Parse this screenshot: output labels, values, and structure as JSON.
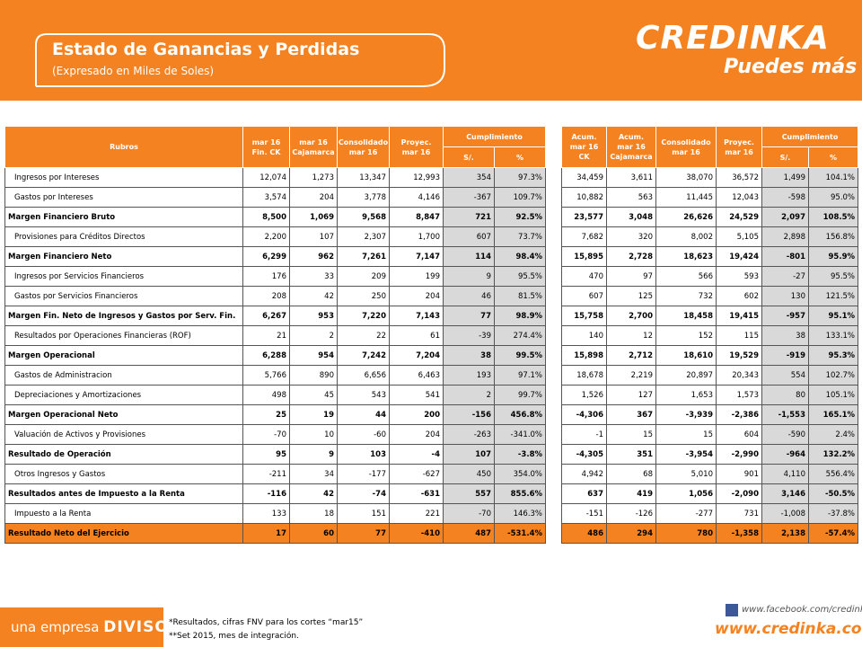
{
  "header": {
    "title": "Estado de Ganancias y Perdidas",
    "subtitle": "(Expresado en Miles de Soles)"
  },
  "logo": {
    "brand": "CREDINKA",
    "tagline": "Puedes más"
  },
  "table": {
    "left_headers": [
      "Rubros",
      "mar 16\nFin. CK",
      "mar 16\nCajamarca",
      "Consolidado\nmar 16",
      "Proyec.\nmar 16",
      "Cumplimiento",
      "S/.",
      "%"
    ],
    "right_headers": [
      "Acum.\nmar 16\nCK",
      "Acum.\nmar 16\nCajamarca",
      "Consolidado\nmar 16",
      "Proyec.\nmar 16",
      "Cumplimiento",
      "S/.",
      "%"
    ],
    "rows": [
      {
        "label": "Ingresos por Intereses",
        "bold": false,
        "values": [
          "12,074",
          "1,273",
          "13,347",
          "12,993",
          "354",
          "97.3%",
          "34,459",
          "3,611",
          "38,070",
          "36,572",
          "1,499",
          "104.1%"
        ]
      },
      {
        "label": "Gastos por Intereses",
        "bold": false,
        "values": [
          "3,574",
          "204",
          "3,778",
          "4,146",
          "-367",
          "109.7%",
          "10,882",
          "563",
          "11,445",
          "12,043",
          "-598",
          "95.0%"
        ]
      },
      {
        "label": "Margen Financiero Bruto",
        "bold": true,
        "values": [
          "8,500",
          "1,069",
          "9,568",
          "8,847",
          "721",
          "92.5%",
          "23,577",
          "3,048",
          "26,626",
          "24,529",
          "2,097",
          "108.5%"
        ]
      },
      {
        "label": "Provisiones para Créditos Directos",
        "bold": false,
        "values": [
          "2,200",
          "107",
          "2,307",
          "1,700",
          "607",
          "73.7%",
          "7,682",
          "320",
          "8,002",
          "5,105",
          "2,898",
          "156.8%"
        ]
      },
      {
        "label": "Margen Financiero Neto",
        "bold": true,
        "values": [
          "6,299",
          "962",
          "7,261",
          "7,147",
          "114",
          "98.4%",
          "15,895",
          "2,728",
          "18,623",
          "19,424",
          "-801",
          "95.9%"
        ]
      },
      {
        "label": "Ingresos por Servicios Financieros",
        "bold": false,
        "values": [
          "176",
          "33",
          "209",
          "199",
          "9",
          "95.5%",
          "470",
          "97",
          "566",
          "593",
          "-27",
          "95.5%"
        ]
      },
      {
        "label": "Gastos por Servicios Financieros",
        "bold": false,
        "values": [
          "208",
          "42",
          "250",
          "204",
          "46",
          "81.5%",
          "607",
          "125",
          "732",
          "602",
          "130",
          "121.5%"
        ]
      },
      {
        "label": "Margen Fin. Neto de Ingresos y Gastos por Serv. Fin.",
        "bold": true,
        "values": [
          "6,267",
          "953",
          "7,220",
          "7,143",
          "77",
          "98.9%",
          "15,758",
          "2,700",
          "18,458",
          "19,415",
          "-957",
          "95.1%"
        ]
      },
      {
        "label": "Resultados por Operaciones Financieras (ROF)",
        "bold": false,
        "values": [
          "21",
          "2",
          "22",
          "61",
          "-39",
          "274.4%",
          "140",
          "12",
          "152",
          "115",
          "38",
          "133.1%"
        ]
      },
      {
        "label": "Margen Operacional",
        "bold": true,
        "values": [
          "6,288",
          "954",
          "7,242",
          "7,204",
          "38",
          "99.5%",
          "15,898",
          "2,712",
          "18,610",
          "19,529",
          "-919",
          "95.3%"
        ]
      },
      {
        "label": "Gastos de Administracion",
        "bold": false,
        "values": [
          "5,766",
          "890",
          "6,656",
          "6,463",
          "193",
          "97.1%",
          "18,678",
          "2,219",
          "20,897",
          "20,343",
          "554",
          "102.7%"
        ]
      },
      {
        "label": "Depreciaciones y Amortizaciones",
        "bold": false,
        "values": [
          "498",
          "45",
          "543",
          "541",
          "2",
          "99.7%",
          "1,526",
          "127",
          "1,653",
          "1,573",
          "80",
          "105.1%"
        ]
      },
      {
        "label": "Margen Operacional Neto",
        "bold": true,
        "values": [
          "25",
          "19",
          "44",
          "200",
          "-156",
          "456.8%",
          "-4,306",
          "367",
          "-3,939",
          "-2,386",
          "-1,553",
          "165.1%"
        ]
      },
      {
        "label": "Valuación de Activos y Provisiones",
        "bold": false,
        "values": [
          "-70",
          "10",
          "-60",
          "204",
          "-263",
          "-341.0%",
          "-1",
          "15",
          "15",
          "604",
          "-590",
          "2.4%"
        ]
      },
      {
        "label": "Resultado de Operación",
        "bold": true,
        "values": [
          "95",
          "9",
          "103",
          "-4",
          "107",
          "-3.8%",
          "-4,305",
          "351",
          "-3,954",
          "-2,990",
          "-964",
          "132.2%"
        ]
      },
      {
        "label": "Otros Ingresos y Gastos",
        "bold": false,
        "values": [
          "-211",
          "34",
          "-177",
          "-627",
          "450",
          "354.0%",
          "4,942",
          "68",
          "5,010",
          "901",
          "4,110",
          "556.4%"
        ]
      },
      {
        "label": "Resultados antes de Impuesto a la Renta",
        "bold": true,
        "values": [
          "-116",
          "42",
          "-74",
          "-631",
          "557",
          "855.6%",
          "637",
          "419",
          "1,056",
          "-2,090",
          "3,146",
          "-50.5%"
        ]
      },
      {
        "label": "Impuesto a la Renta",
        "bold": false,
        "values": [
          "133",
          "18",
          "151",
          "221",
          "-70",
          "146.3%",
          "-151",
          "-126",
          "-277",
          "731",
          "-1,008",
          "-37.8%"
        ]
      },
      {
        "label": "Resultado Neto del Ejercicio",
        "bold": true,
        "highlight": true,
        "values": [
          "17",
          "60",
          "77",
          "-410",
          "487",
          "-531.4%",
          "486",
          "294",
          "780",
          "-1,358",
          "2,138",
          "-57.4%"
        ]
      }
    ]
  },
  "footer": {
    "company_prefix": "una empresa",
    "company": "DIVISO",
    "notes": [
      "*Resultados, cifras FNV para los cortes “mar15”",
      "**Set 2015, mes de integración."
    ],
    "facebook": "www.facebook.com/credinka",
    "website": "www.credinka.com"
  }
}
